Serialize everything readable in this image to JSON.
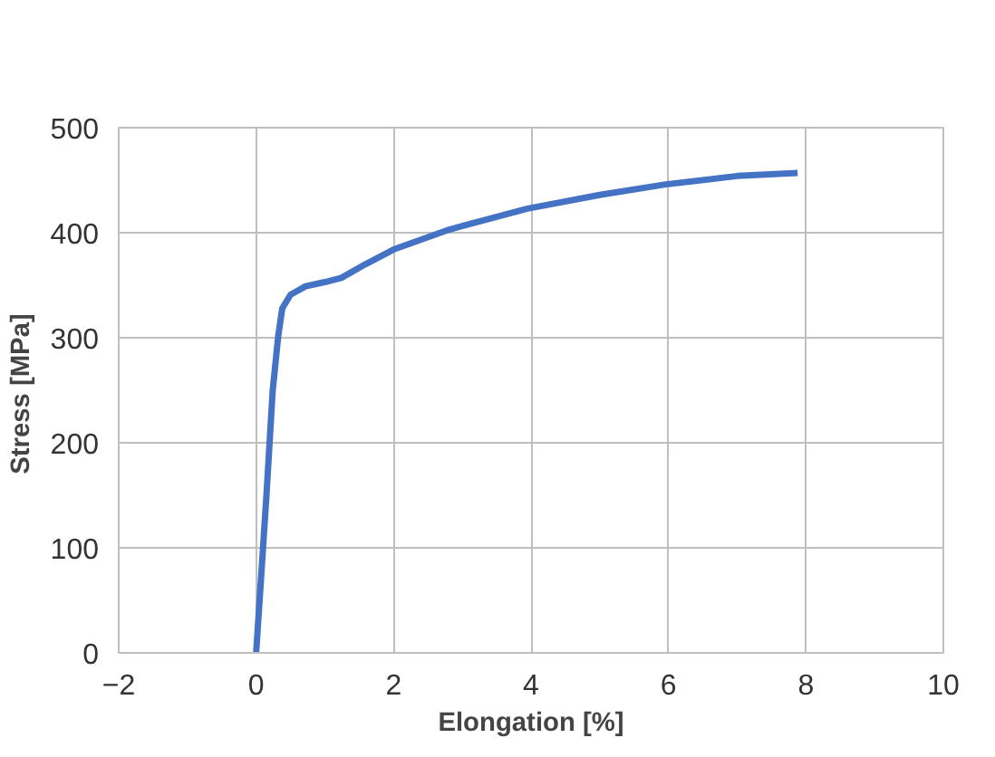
{
  "chart_data": {
    "type": "line",
    "xlabel": "Elongation [%]",
    "ylabel": "Stress  [MPa]",
    "xlim": [
      -2,
      10
    ],
    "xticks": [
      -2,
      0,
      2,
      4,
      6,
      8,
      10
    ],
    "ylim": [
      0,
      500
    ],
    "yticks": [
      0,
      100,
      200,
      300,
      400,
      500
    ],
    "grid": true,
    "marker": "none",
    "line_style": "solid",
    "series": [
      {
        "color": "#4472c4",
        "x": [
          0,
          0.08,
          0.15,
          0.24,
          0.32,
          0.38,
          0.5,
          0.72,
          1.0,
          1.24,
          1.59,
          2.0,
          2.81,
          3.95,
          5.0,
          5.96,
          7.0,
          7.88
        ],
        "values": [
          0,
          80,
          150,
          249,
          301,
          328,
          341,
          349,
          353,
          357,
          370,
          384,
          403,
          423,
          436,
          446,
          454,
          457
        ]
      }
    ]
  }
}
